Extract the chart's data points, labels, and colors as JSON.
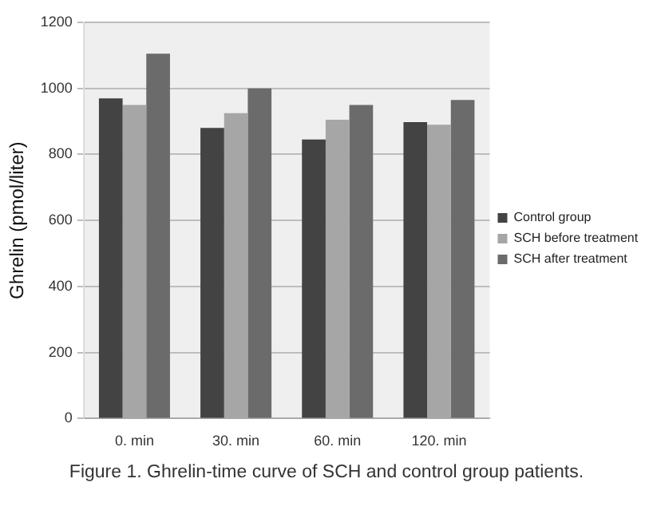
{
  "chart_data": {
    "type": "bar",
    "ylabel": "Ghrelin (pmol/liter)",
    "categories": [
      "0. min",
      "30. min",
      "60. min",
      "120. min"
    ],
    "series": [
      {
        "name": "Control group",
        "color": "#434343",
        "values": [
          970,
          880,
          845,
          898
        ]
      },
      {
        "name": "SCH before treatment",
        "color": "#a6a6a6",
        "values": [
          950,
          925,
          905,
          890
        ]
      },
      {
        "name": "SCH after treatment",
        "color": "#6b6b6b",
        "values": [
          1105,
          1000,
          950,
          965
        ]
      }
    ],
    "ylim": [
      0,
      1200
    ],
    "yticks": [
      0,
      200,
      400,
      600,
      800,
      1000,
      1200
    ],
    "grid": "y",
    "legend": "right",
    "annotations": [
      "Figure 1.  Ghrelin-time curve of SCH and control group patients."
    ]
  }
}
